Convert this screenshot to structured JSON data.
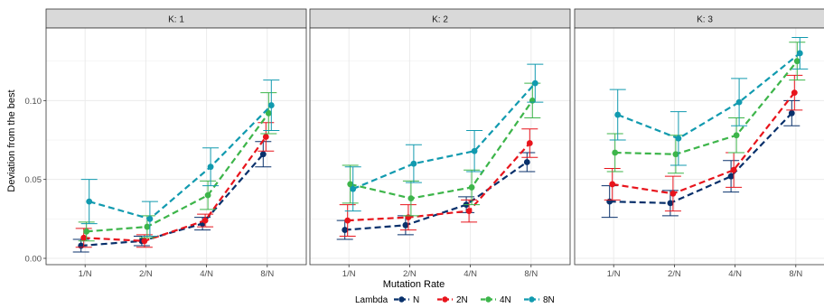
{
  "chart_data": {
    "type": "line",
    "facet_label": "K",
    "panels": [
      "1",
      "2",
      "3"
    ],
    "x": [
      "1/N",
      "2/N",
      "4/N",
      "8/N"
    ],
    "xlabel": "Mutation Rate",
    "ylabel": "Deviation from the best",
    "ylim": [
      -0.004,
      0.146
    ],
    "yticks": [
      0.0,
      0.05,
      0.1
    ],
    "ytick_labels": [
      "0.00",
      "0.05",
      "0.10"
    ],
    "grid": true,
    "legend": {
      "title": "Lambda",
      "position": "bottom"
    },
    "series": [
      {
        "name": "N",
        "color": "#08306b",
        "values": [
          [
            0.008,
            0.011,
            0.022,
            0.066
          ],
          [
            0.018,
            0.021,
            0.034,
            0.061
          ],
          [
            0.036,
            0.035,
            0.052,
            0.092
          ]
        ],
        "err": [
          [
            0.004,
            0.003,
            0.004,
            0.008
          ],
          [
            0.006,
            0.006,
            0.005,
            0.006
          ],
          [
            0.01,
            0.008,
            0.01,
            0.008
          ]
        ]
      },
      {
        "name": "2N",
        "color": "#e8141c",
        "values": [
          [
            0.013,
            0.011,
            0.024,
            0.077
          ],
          [
            0.024,
            0.026,
            0.03,
            0.073
          ],
          [
            0.047,
            0.041,
            0.056,
            0.105
          ]
        ],
        "err": [
          [
            0.006,
            0.004,
            0.004,
            0.009
          ],
          [
            0.01,
            0.008,
            0.007,
            0.009
          ],
          [
            0.01,
            0.011,
            0.011,
            0.011
          ]
        ]
      },
      {
        "name": "4N",
        "color": "#3db54a",
        "values": [
          [
            0.017,
            0.02,
            0.04,
            0.092
          ],
          [
            0.047,
            0.038,
            0.045,
            0.1
          ],
          [
            0.067,
            0.066,
            0.078,
            0.125
          ]
        ],
        "err": [
          [
            0.006,
            0.007,
            0.009,
            0.013
          ],
          [
            0.012,
            0.011,
            0.011,
            0.011
          ],
          [
            0.012,
            0.012,
            0.011,
            0.012
          ]
        ]
      },
      {
        "name": "8N",
        "color": "#119aaf",
        "values": [
          [
            0.036,
            0.025,
            0.058,
            0.097
          ],
          [
            0.044,
            0.06,
            0.068,
            0.111
          ],
          [
            0.091,
            0.076,
            0.099,
            0.13
          ]
        ],
        "err": [
          [
            0.014,
            0.011,
            0.012,
            0.016
          ],
          [
            0.014,
            0.012,
            0.013,
            0.012
          ],
          [
            0.016,
            0.017,
            0.015,
            0.01
          ]
        ]
      }
    ]
  }
}
